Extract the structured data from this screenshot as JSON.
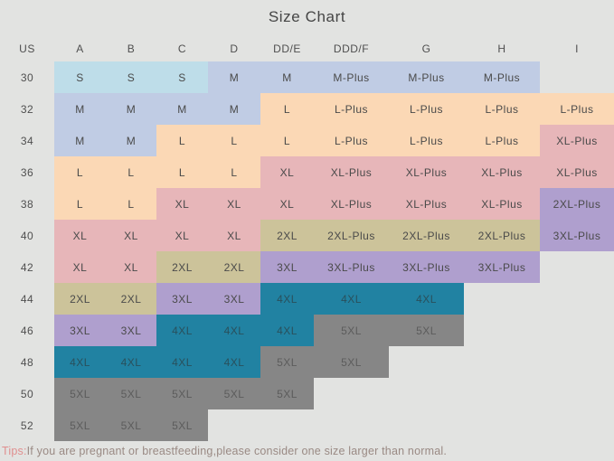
{
  "chart_data": {
    "type": "table",
    "title": "Size Chart",
    "columns": [
      "US",
      "A",
      "B",
      "C",
      "D",
      "DD/E",
      "DDD/F",
      "G",
      "H",
      "I"
    ],
    "rows": [
      {
        "band_size": "30",
        "cells": [
          {
            "size": "S",
            "color": "light_blue"
          },
          {
            "size": "S",
            "color": "light_blue"
          },
          {
            "size": "S",
            "color": "light_blue"
          },
          {
            "size": "M",
            "color": "steel_blue"
          },
          {
            "size": "M",
            "color": "steel_blue"
          },
          {
            "size": "M-Plus",
            "color": "steel_blue"
          },
          {
            "size": "M-Plus",
            "color": "steel_blue"
          },
          {
            "size": "M-Plus",
            "color": "steel_blue"
          },
          {
            "size": "",
            "color": "none"
          }
        ]
      },
      {
        "band_size": "32",
        "cells": [
          {
            "size": "M",
            "color": "steel_blue"
          },
          {
            "size": "M",
            "color": "steel_blue"
          },
          {
            "size": "M",
            "color": "steel_blue"
          },
          {
            "size": "M",
            "color": "steel_blue"
          },
          {
            "size": "L",
            "color": "peach"
          },
          {
            "size": "L-Plus",
            "color": "peach"
          },
          {
            "size": "L-Plus",
            "color": "peach"
          },
          {
            "size": "L-Plus",
            "color": "peach"
          },
          {
            "size": "L-Plus",
            "color": "peach"
          }
        ]
      },
      {
        "band_size": "34",
        "cells": [
          {
            "size": "M",
            "color": "steel_blue"
          },
          {
            "size": "M",
            "color": "steel_blue"
          },
          {
            "size": "L",
            "color": "peach"
          },
          {
            "size": "L",
            "color": "peach"
          },
          {
            "size": "L",
            "color": "peach"
          },
          {
            "size": "L-Plus",
            "color": "peach"
          },
          {
            "size": "L-Plus",
            "color": "peach"
          },
          {
            "size": "L-Plus",
            "color": "peach"
          },
          {
            "size": "XL-Plus",
            "color": "rose"
          }
        ]
      },
      {
        "band_size": "36",
        "cells": [
          {
            "size": "L",
            "color": "peach"
          },
          {
            "size": "L",
            "color": "peach"
          },
          {
            "size": "L",
            "color": "peach"
          },
          {
            "size": "L",
            "color": "peach"
          },
          {
            "size": "XL",
            "color": "rose"
          },
          {
            "size": "XL-Plus",
            "color": "rose"
          },
          {
            "size": "XL-Plus",
            "color": "rose"
          },
          {
            "size": "XL-Plus",
            "color": "rose"
          },
          {
            "size": "XL-Plus",
            "color": "rose"
          }
        ]
      },
      {
        "band_size": "38",
        "cells": [
          {
            "size": "L",
            "color": "peach"
          },
          {
            "size": "L",
            "color": "peach"
          },
          {
            "size": "XL",
            "color": "rose"
          },
          {
            "size": "XL",
            "color": "rose"
          },
          {
            "size": "XL",
            "color": "rose"
          },
          {
            "size": "XL-Plus",
            "color": "rose"
          },
          {
            "size": "XL-Plus",
            "color": "rose"
          },
          {
            "size": "XL-Plus",
            "color": "rose"
          },
          {
            "size": "2XL-Plus",
            "color": "purple"
          }
        ]
      },
      {
        "band_size": "40",
        "cells": [
          {
            "size": "XL",
            "color": "rose"
          },
          {
            "size": "XL",
            "color": "rose"
          },
          {
            "size": "XL",
            "color": "rose"
          },
          {
            "size": "XL",
            "color": "rose"
          },
          {
            "size": "2XL",
            "color": "olive"
          },
          {
            "size": "2XL-Plus",
            "color": "olive"
          },
          {
            "size": "2XL-Plus",
            "color": "olive"
          },
          {
            "size": "2XL-Plus",
            "color": "olive"
          },
          {
            "size": "3XL-Plus",
            "color": "purple"
          }
        ]
      },
      {
        "band_size": "42",
        "cells": [
          {
            "size": "XL",
            "color": "rose"
          },
          {
            "size": "XL",
            "color": "rose"
          },
          {
            "size": "2XL",
            "color": "olive"
          },
          {
            "size": "2XL",
            "color": "olive"
          },
          {
            "size": "3XL",
            "color": "purple"
          },
          {
            "size": "3XL-Plus",
            "color": "purple"
          },
          {
            "size": "3XL-Plus",
            "color": "purple"
          },
          {
            "size": "3XL-Plus",
            "color": "purple"
          },
          {
            "size": "",
            "color": "none"
          }
        ]
      },
      {
        "band_size": "44",
        "cells": [
          {
            "size": "2XL",
            "color": "olive"
          },
          {
            "size": "2XL",
            "color": "olive"
          },
          {
            "size": "3XL",
            "color": "purple"
          },
          {
            "size": "3XL",
            "color": "purple"
          },
          {
            "size": "4XL",
            "color": "teal"
          },
          {
            "size": "4XL",
            "color": "teal"
          },
          {
            "size": "4XL",
            "color": "teal"
          },
          {
            "size": "",
            "color": "none"
          },
          {
            "size": "",
            "color": "none"
          }
        ]
      },
      {
        "band_size": "46",
        "cells": [
          {
            "size": "3XL",
            "color": "purple"
          },
          {
            "size": "3XL",
            "color": "purple"
          },
          {
            "size": "4XL",
            "color": "teal"
          },
          {
            "size": "4XL",
            "color": "teal"
          },
          {
            "size": "4XL",
            "color": "teal"
          },
          {
            "size": "5XL",
            "color": "gray"
          },
          {
            "size": "5XL",
            "color": "gray"
          },
          {
            "size": "",
            "color": "none"
          },
          {
            "size": "",
            "color": "none"
          }
        ]
      },
      {
        "band_size": "48",
        "cells": [
          {
            "size": "4XL",
            "color": "teal"
          },
          {
            "size": "4XL",
            "color": "teal"
          },
          {
            "size": "4XL",
            "color": "teal"
          },
          {
            "size": "4XL",
            "color": "teal"
          },
          {
            "size": "5XL",
            "color": "gray"
          },
          {
            "size": "5XL",
            "color": "gray"
          },
          {
            "size": "",
            "color": "none"
          },
          {
            "size": "",
            "color": "none"
          },
          {
            "size": "",
            "color": "none"
          }
        ]
      },
      {
        "band_size": "50",
        "cells": [
          {
            "size": "5XL",
            "color": "gray"
          },
          {
            "size": "5XL",
            "color": "gray"
          },
          {
            "size": "5XL",
            "color": "gray"
          },
          {
            "size": "5XL",
            "color": "gray"
          },
          {
            "size": "5XL",
            "color": "gray"
          },
          {
            "size": "",
            "color": "none"
          },
          {
            "size": "",
            "color": "none"
          },
          {
            "size": "",
            "color": "none"
          },
          {
            "size": "",
            "color": "none"
          }
        ]
      },
      {
        "band_size": "52",
        "cells": [
          {
            "size": "5XL",
            "color": "gray"
          },
          {
            "size": "5XL",
            "color": "gray"
          },
          {
            "size": "5XL",
            "color": "gray"
          },
          {
            "size": "",
            "color": "none"
          },
          {
            "size": "",
            "color": "none"
          },
          {
            "size": "",
            "color": "none"
          },
          {
            "size": "",
            "color": "none"
          },
          {
            "size": "",
            "color": "none"
          },
          {
            "size": "",
            "color": "none"
          }
        ]
      }
    ]
  },
  "palette": {
    "light_blue": "#bedde9",
    "steel_blue": "#c0cce4",
    "peach": "#fbd8b5",
    "rose": "#e7b6b9",
    "olive": "#ccc39a",
    "purple": "#af9fce",
    "teal": "#2182a2",
    "gray": "#868686",
    "background": "#e2e3e1"
  },
  "text_colors": {
    "default": "#4a4a4a",
    "teal": "#29505c",
    "gray": "#5c5c5c",
    "header": "#4f4f4f",
    "title": "#454545",
    "tips_label": "#e08f8f",
    "tips_text": "#9a8a84"
  },
  "tips": {
    "label": "Tips:",
    "text": "If you are pregnant or breastfeeding,please consider one size larger than normal."
  }
}
